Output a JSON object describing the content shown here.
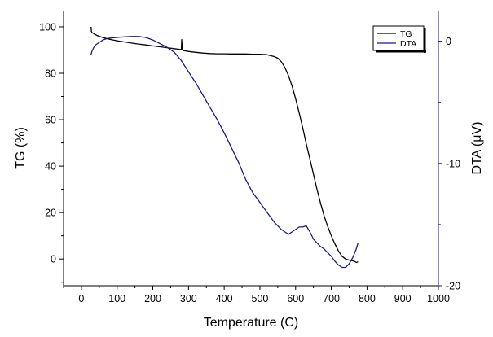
{
  "chart_data": {
    "type": "line",
    "title": "",
    "xlabel": "Temperature (C)",
    "ylabel_left": "TG (%)",
    "ylabel_right": "DTA (μV)",
    "xlim": [
      -50,
      1000
    ],
    "ylim_left": [
      -11.5,
      107
    ],
    "ylim_right": [
      -20,
      2.5
    ],
    "x_ticks": [
      0,
      100,
      200,
      300,
      400,
      500,
      600,
      700,
      800,
      900,
      1000
    ],
    "y_ticks_left": [
      0,
      20,
      40,
      60,
      80,
      100
    ],
    "y_ticks_right": [
      0,
      -10,
      -20
    ],
    "grid": false,
    "legend_position": "top-right",
    "series": [
      {
        "name": "TG",
        "axis": "left",
        "color": "#000000",
        "x": [
          27,
          28,
          30,
          35,
          45,
          60,
          80,
          100,
          120,
          140,
          160,
          180,
          200,
          220,
          240,
          260,
          275,
          280,
          281,
          282,
          283,
          285,
          300,
          320,
          340,
          360,
          380,
          400,
          420,
          440,
          460,
          480,
          500,
          520,
          540,
          550,
          560,
          570,
          580,
          590,
          600,
          610,
          620,
          630,
          640,
          650,
          660,
          670,
          680,
          690,
          700,
          710,
          720,
          730,
          740,
          750,
          760,
          765,
          770,
          775
        ],
        "y": [
          100,
          98,
          97.5,
          97,
          96.2,
          95.4,
          94.6,
          94,
          93.5,
          93,
          92.6,
          92.2,
          91.8,
          91.4,
          91,
          90.6,
          90.3,
          90.2,
          94.5,
          92,
          90.1,
          89.8,
          89.4,
          89,
          88.7,
          88.5,
          88.4,
          88.4,
          88.3,
          88.3,
          88.3,
          88.2,
          88.2,
          88,
          87.2,
          86.5,
          85,
          82.5,
          79,
          74.5,
          69,
          63,
          56.5,
          49.5,
          43,
          36.5,
          30,
          24,
          18.5,
          14,
          10,
          6.5,
          3.5,
          1.2,
          0,
          -0.5,
          -0.8,
          -1,
          -1.5,
          -1.2
        ]
      },
      {
        "name": "DTA",
        "axis": "right",
        "color": "#1a1a8c",
        "x": [
          27,
          30,
          35,
          40,
          45,
          50,
          60,
          70,
          80,
          100,
          120,
          140,
          160,
          180,
          200,
          220,
          240,
          260,
          280,
          300,
          320,
          340,
          360,
          380,
          400,
          420,
          440,
          460,
          480,
          500,
          520,
          540,
          560,
          570,
          580,
          590,
          600,
          610,
          620,
          630,
          640,
          650,
          660,
          670,
          680,
          690,
          700,
          710,
          720,
          730,
          740,
          750,
          760,
          770,
          775
        ],
        "y": [
          -1.1,
          -0.8,
          -0.5,
          -0.3,
          -0.2,
          -0.1,
          0.1,
          0.2,
          0.25,
          0.3,
          0.35,
          0.38,
          0.38,
          0.3,
          0.1,
          -0.2,
          -0.5,
          -0.9,
          -1.6,
          -2.5,
          -3.4,
          -4.4,
          -5.4,
          -6.4,
          -7.5,
          -8.7,
          -9.9,
          -11.3,
          -12.4,
          -13.2,
          -14,
          -14.8,
          -15.4,
          -15.6,
          -15.8,
          -15.6,
          -15.4,
          -15.2,
          -15.2,
          -15.1,
          -15.6,
          -16.2,
          -16.5,
          -16.8,
          -17,
          -17.3,
          -17.6,
          -18,
          -18.3,
          -18.5,
          -18.5,
          -18.2,
          -17.7,
          -17,
          -16.5
        ]
      }
    ]
  }
}
